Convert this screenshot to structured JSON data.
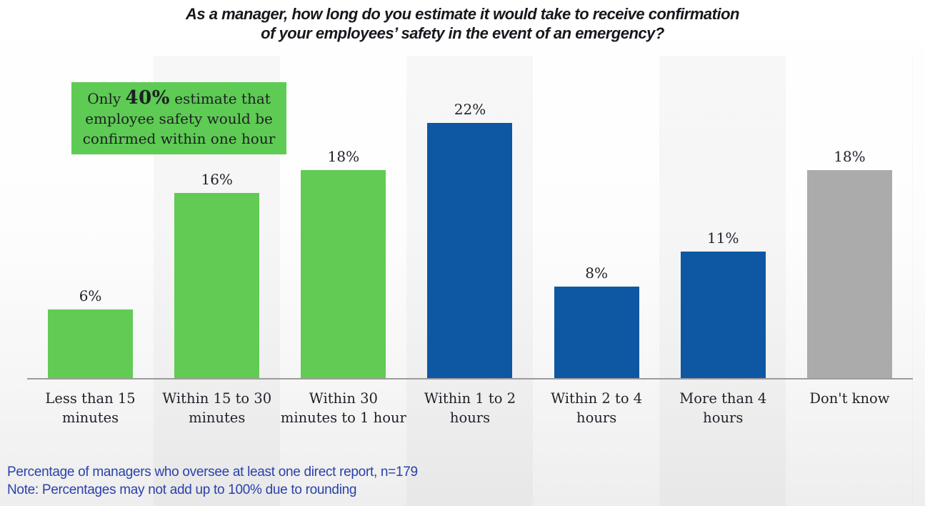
{
  "title": {
    "line1": "As a manager, how long do you estimate it would take to receive confirmation",
    "line2": "of your employees’ safety in the event of an emergency?"
  },
  "callout": {
    "line1_pre": "Only ",
    "line1_bold": "40%",
    "line1_post": " estimate that",
    "line2": "employee safety would be",
    "line3": "confirmed within one hour",
    "bg_color": "#5ecb54"
  },
  "chart_data": {
    "type": "bar",
    "title": "As a manager, how long do you estimate it would take to receive confirmation of your employees’ safety in the event of an emergency?",
    "categories": [
      [
        "Less than 15",
        "minutes"
      ],
      [
        "Within 15 to 30",
        "minutes"
      ],
      [
        "Within 30",
        "minutes to 1 hour"
      ],
      [
        "Within 1 to 2",
        "hours"
      ],
      [
        "Within 2 to 4",
        "hours"
      ],
      [
        "More than 4",
        "hours"
      ],
      [
        "Don't know"
      ]
    ],
    "values": [
      6,
      16,
      18,
      22,
      8,
      11,
      18
    ],
    "value_labels": [
      "6%",
      "16%",
      "18%",
      "22%",
      "8%",
      "11%",
      "18%"
    ],
    "bar_colors": [
      "#61cb54",
      "#61cb54",
      "#61cb54",
      "#0d57a3",
      "#0d57a3",
      "#0d57a3",
      "#ababab"
    ],
    "color_green": "#61cb54",
    "color_blue": "#0d57a3",
    "color_gray": "#ababab",
    "xlabel": "",
    "ylabel": "",
    "ylim": [
      0,
      24
    ],
    "grid": false,
    "legend": false,
    "value_labels_position": "above bars",
    "axis_line_color": "#9c9c9c"
  },
  "notes": {
    "line1": "Percentage of managers who oversee at least one direct report, n=179",
    "line2": "Note: Percentages may not add up to 100% due to rounding",
    "color": "#2a41ab"
  }
}
